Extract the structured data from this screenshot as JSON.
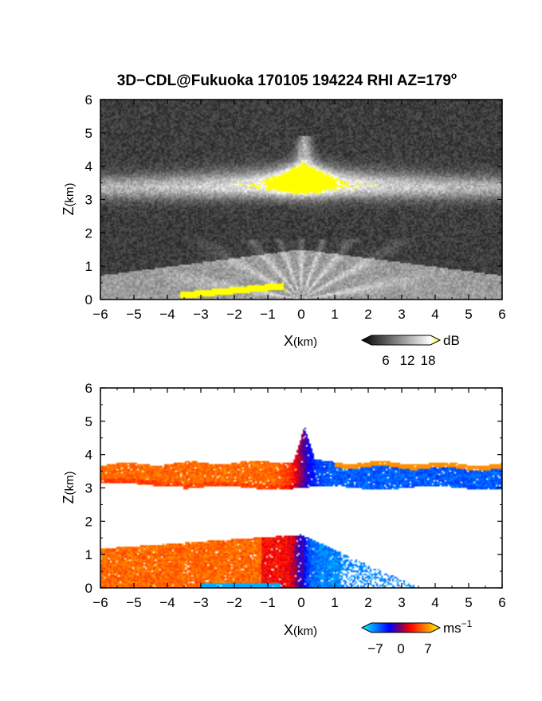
{
  "chart_data": [
    {
      "type": "heatmap",
      "title": "3D−CDL@Fukuoka 170105 194224 RHI AZ=179",
      "title_sup": "o",
      "xlabel": "X",
      "xunit": "(km)",
      "ylabel": "Z",
      "yunit": "(km)",
      "xlim": [
        -6,
        6
      ],
      "ylim": [
        0,
        6
      ],
      "x_ticks": [
        "−6",
        "−5",
        "−4",
        "−3",
        "−2",
        "−1",
        "0",
        "1",
        "2",
        "3",
        "4",
        "5",
        "6"
      ],
      "y_ticks": [
        "0",
        "1",
        "2",
        "3",
        "4",
        "5",
        "6"
      ],
      "colorbar": {
        "unit": "dB",
        "ticks": [
          "6",
          "12",
          "18"
        ],
        "range": [
          0,
          20
        ],
        "colors": [
          "#000000",
          "#ffffff",
          "#ffff00"
        ]
      },
      "features": [
        {
          "kind": "cloud_layer",
          "z_range": [
            3.0,
            3.7
          ],
          "x_range": [
            -6,
            6
          ]
        },
        {
          "kind": "cloud_top",
          "x": 0.1,
          "z": 4.9
        },
        {
          "kind": "saturated_core",
          "x_range": [
            -0.8,
            0.9
          ],
          "z_range": [
            3.2,
            4.0
          ]
        },
        {
          "kind": "boundary_layer",
          "z_range": [
            0,
            1.5
          ]
        }
      ]
    },
    {
      "type": "heatmap",
      "xlabel": "X",
      "xunit": "(km)",
      "ylabel": "Z",
      "yunit": "(km)",
      "xlim": [
        -6,
        6
      ],
      "ylim": [
        0,
        6
      ],
      "x_ticks": [
        "−6",
        "−5",
        "−4",
        "−3",
        "−2",
        "−1",
        "0",
        "1",
        "2",
        "3",
        "4",
        "5",
        "6"
      ],
      "y_ticks": [
        "0",
        "1",
        "2",
        "3",
        "4",
        "5",
        "6"
      ],
      "colorbar": {
        "unit": "ms",
        "unit_exp": "−1",
        "ticks": [
          "−7",
          "0",
          "7"
        ],
        "range": [
          -9,
          9
        ],
        "colors": [
          "#00ffff",
          "#0000ff",
          "#ff0000",
          "#ffff00"
        ]
      },
      "features": [
        {
          "kind": "cloud_layer",
          "z_range": [
            3.0,
            3.8
          ],
          "x_range": [
            -6,
            6
          ],
          "velocity_west": 5,
          "velocity_east": -5
        },
        {
          "kind": "cloud_top",
          "x": 0.1,
          "z": 4.85
        },
        {
          "kind": "boundary_layer",
          "z_range": [
            0,
            1.6
          ],
          "x_range": [
            -6,
            3.5
          ],
          "velocity_west": 5,
          "velocity_east": -6
        }
      ]
    }
  ]
}
